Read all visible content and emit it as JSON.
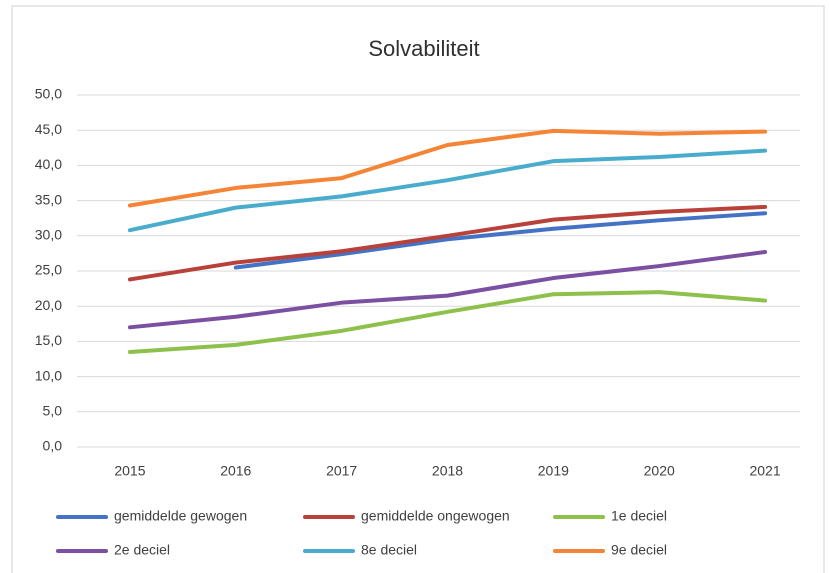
{
  "chart_data": {
    "type": "line",
    "title": "Solvabiliteit",
    "categories": [
      "2015",
      "2016",
      "2017",
      "2018",
      "2019",
      "2020",
      "2021"
    ],
    "ylim": [
      0,
      50
    ],
    "yticks": [
      {
        "value": 0,
        "label": "0,0"
      },
      {
        "value": 5,
        "label": "5,0"
      },
      {
        "value": 10,
        "label": "10,0"
      },
      {
        "value": 15,
        "label": "15,0"
      },
      {
        "value": 20,
        "label": "20,0"
      },
      {
        "value": 25,
        "label": "25,0"
      },
      {
        "value": 30,
        "label": "30,0"
      },
      {
        "value": 35,
        "label": "35,0"
      },
      {
        "value": 40,
        "label": "40,0"
      },
      {
        "value": 45,
        "label": "45,0"
      },
      {
        "value": 50,
        "label": "50,0"
      }
    ],
    "grid": true,
    "series": [
      {
        "name": "gemiddelde gewogen",
        "color": "#4472c4",
        "values": [
          null,
          25.5,
          27.4,
          29.5,
          31.0,
          32.2,
          33.2
        ]
      },
      {
        "name": "gemiddelde ongewogen",
        "color": "#b8413a",
        "values": [
          23.8,
          26.2,
          27.8,
          30.0,
          32.3,
          33.4,
          34.1
        ]
      },
      {
        "name": "1e deciel",
        "color": "#8dc14b",
        "values": [
          13.5,
          14.5,
          16.5,
          19.2,
          21.7,
          22.0,
          20.8
        ]
      },
      {
        "name": "2e deciel",
        "color": "#7b4fa2",
        "values": [
          17.0,
          18.5,
          20.5,
          21.5,
          24.0,
          25.7,
          27.7
        ]
      },
      {
        "name": "8e deciel",
        "color": "#4aaccc",
        "values": [
          30.8,
          34.0,
          35.6,
          37.9,
          40.6,
          41.2,
          42.1
        ]
      },
      {
        "name": "9e deciel",
        "color": "#f58536",
        "values": [
          34.3,
          36.8,
          38.2,
          42.9,
          44.9,
          44.5,
          44.8
        ]
      }
    ]
  }
}
